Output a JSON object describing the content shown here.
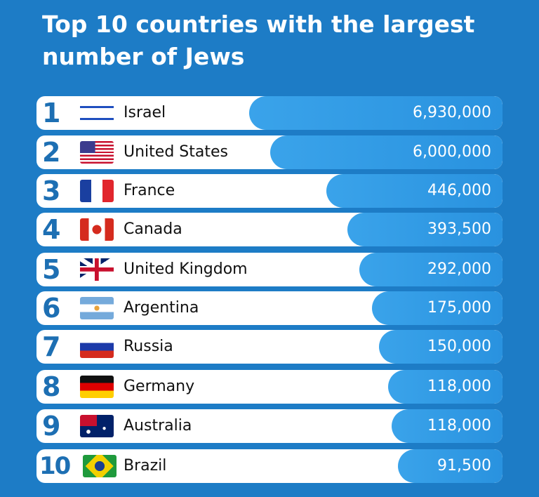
{
  "title": "Top 10 countries with the largest number of Jews",
  "rows": [
    {
      "rank": "1",
      "country": "Israel",
      "value": "6,930,000"
    },
    {
      "rank": "2",
      "country": "United States",
      "value": "6,000,000"
    },
    {
      "rank": "3",
      "country": "France",
      "value": "446,000"
    },
    {
      "rank": "4",
      "country": "Canada",
      "value": "393,500"
    },
    {
      "rank": "5",
      "country": "United Kingdom",
      "value": "292,000"
    },
    {
      "rank": "6",
      "country": "Argentina",
      "value": "175,000"
    },
    {
      "rank": "7",
      "country": "Russia",
      "value": "150,000"
    },
    {
      "rank": "8",
      "country": "Germany",
      "value": "118,000"
    },
    {
      "rank": "9",
      "country": "Australia",
      "value": "118,000"
    },
    {
      "rank": "10",
      "country": "Brazil",
      "value": "91,500"
    }
  ]
}
